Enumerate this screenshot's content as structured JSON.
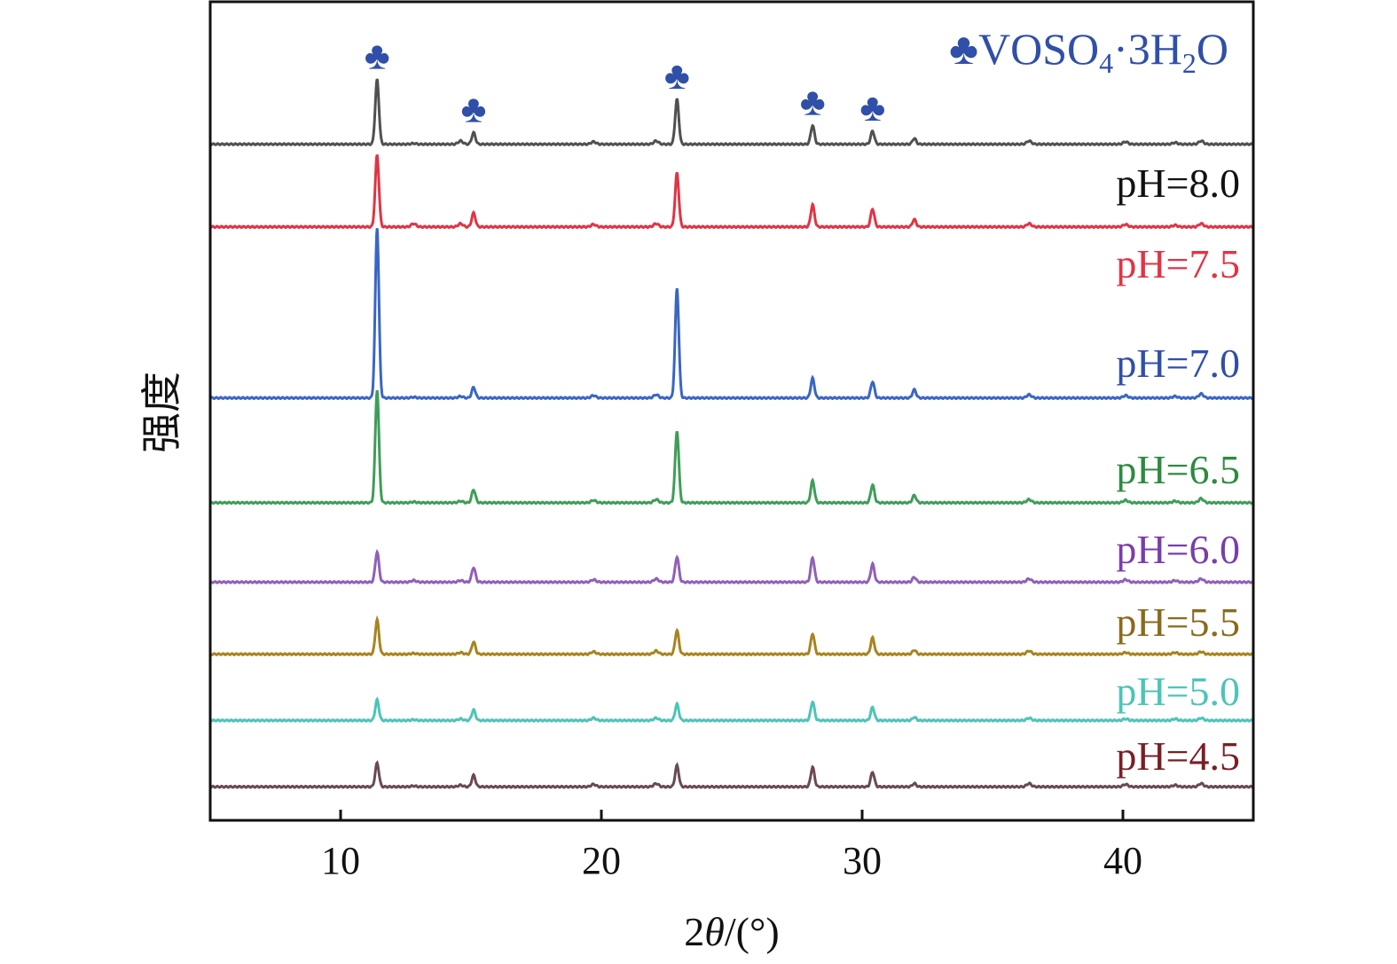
{
  "chart_data": {
    "type": "line",
    "title": "",
    "xlabel": "2θ/(°)",
    "xlabel_parts": [
      "2",
      "θ",
      "/(°)"
    ],
    "ylabel": "强度",
    "xlim": [
      5,
      45
    ],
    "ylim": [
      0,
      100
    ],
    "xticks": [
      10,
      20,
      30,
      40
    ],
    "xtick_labels": [
      "10",
      "20",
      "30",
      "40"
    ],
    "yticks": [],
    "grid": false,
    "legend": {
      "placement": "top-right",
      "symbol": "♣",
      "label": "VOSO4·3H2O",
      "label_parts": [
        "VOSO",
        "4",
        "·3H",
        "2",
        "O"
      ],
      "color": "#2f4fa8"
    },
    "marker_symbol": "♣",
    "marked_peaks": [
      11.4,
      15.1,
      22.9,
      28.1,
      30.4
    ],
    "peak_positions": [
      11.4,
      15.1,
      22.9,
      28.1,
      30.4,
      32.0,
      14.6,
      19.7,
      22.1,
      36.4,
      40.1,
      42.0,
      43.0,
      12.8
    ],
    "series": [
      {
        "name": "pH=8.0",
        "color": "#505050",
        "label_color": "#111111",
        "offset": 82.6,
        "peak_heights": [
          7.9,
          1.4,
          5.5,
          2.3,
          1.6,
          0.7,
          0.4,
          0.3,
          0.4,
          0.4,
          0.3,
          0.2,
          0.4,
          0.1
        ]
      },
      {
        "name": "pH=7.5",
        "color": "#e03444",
        "label_color": "#e03444",
        "offset": 72.5,
        "peak_heights": [
          8.8,
          1.7,
          6.6,
          2.7,
          2.2,
          0.9,
          0.4,
          0.3,
          0.4,
          0.4,
          0.3,
          0.2,
          0.4,
          0.4
        ]
      },
      {
        "name": "pH=7.0",
        "color": "#3a66c4",
        "label_color": "#2f4fa8",
        "offset": 51.6,
        "peak_heights": [
          20.8,
          1.3,
          13.4,
          2.4,
          2.0,
          1.0,
          0.2,
          0.3,
          0.4,
          0.4,
          0.3,
          0.2,
          0.5,
          0.1
        ]
      },
      {
        "name": "pH=6.5",
        "color": "#3e9e58",
        "label_color": "#2e8a40",
        "offset": 38.8,
        "peak_heights": [
          13.8,
          1.6,
          8.8,
          2.7,
          2.2,
          0.9,
          0.2,
          0.3,
          0.4,
          0.4,
          0.3,
          0.2,
          0.5,
          0.1
        ]
      },
      {
        "name": "pH=6.0",
        "color": "#9060b8",
        "label_color": "#7a3ea8",
        "offset": 29.1,
        "peak_heights": [
          3.7,
          1.8,
          3.1,
          3.0,
          2.2,
          0.6,
          0.2,
          0.3,
          0.4,
          0.4,
          0.3,
          0.2,
          0.4,
          0.2
        ]
      },
      {
        "name": "pH=5.5",
        "color": "#a88420",
        "label_color": "#8a6a1c",
        "offset": 20.3,
        "peak_heights": [
          4.2,
          1.5,
          2.9,
          2.5,
          2.0,
          0.5,
          0.2,
          0.3,
          0.4,
          0.4,
          0.2,
          0.2,
          0.3,
          0.1
        ]
      },
      {
        "name": "pH=5.0",
        "color": "#4cc4b8",
        "label_color": "#4cc4b8",
        "offset": 12.2,
        "peak_heights": [
          2.5,
          1.3,
          2.0,
          2.3,
          1.6,
          0.4,
          0.2,
          0.3,
          0.3,
          0.3,
          0.2,
          0.2,
          0.3,
          0.1
        ]
      },
      {
        "name": "pH=4.5",
        "color": "#6a4a52",
        "label_color": "#7a1e26",
        "offset": 4.1,
        "peak_heights": [
          2.9,
          1.4,
          2.6,
          2.4,
          1.8,
          0.4,
          0.2,
          0.3,
          0.4,
          0.4,
          0.3,
          0.2,
          0.4,
          0.1
        ]
      }
    ]
  }
}
